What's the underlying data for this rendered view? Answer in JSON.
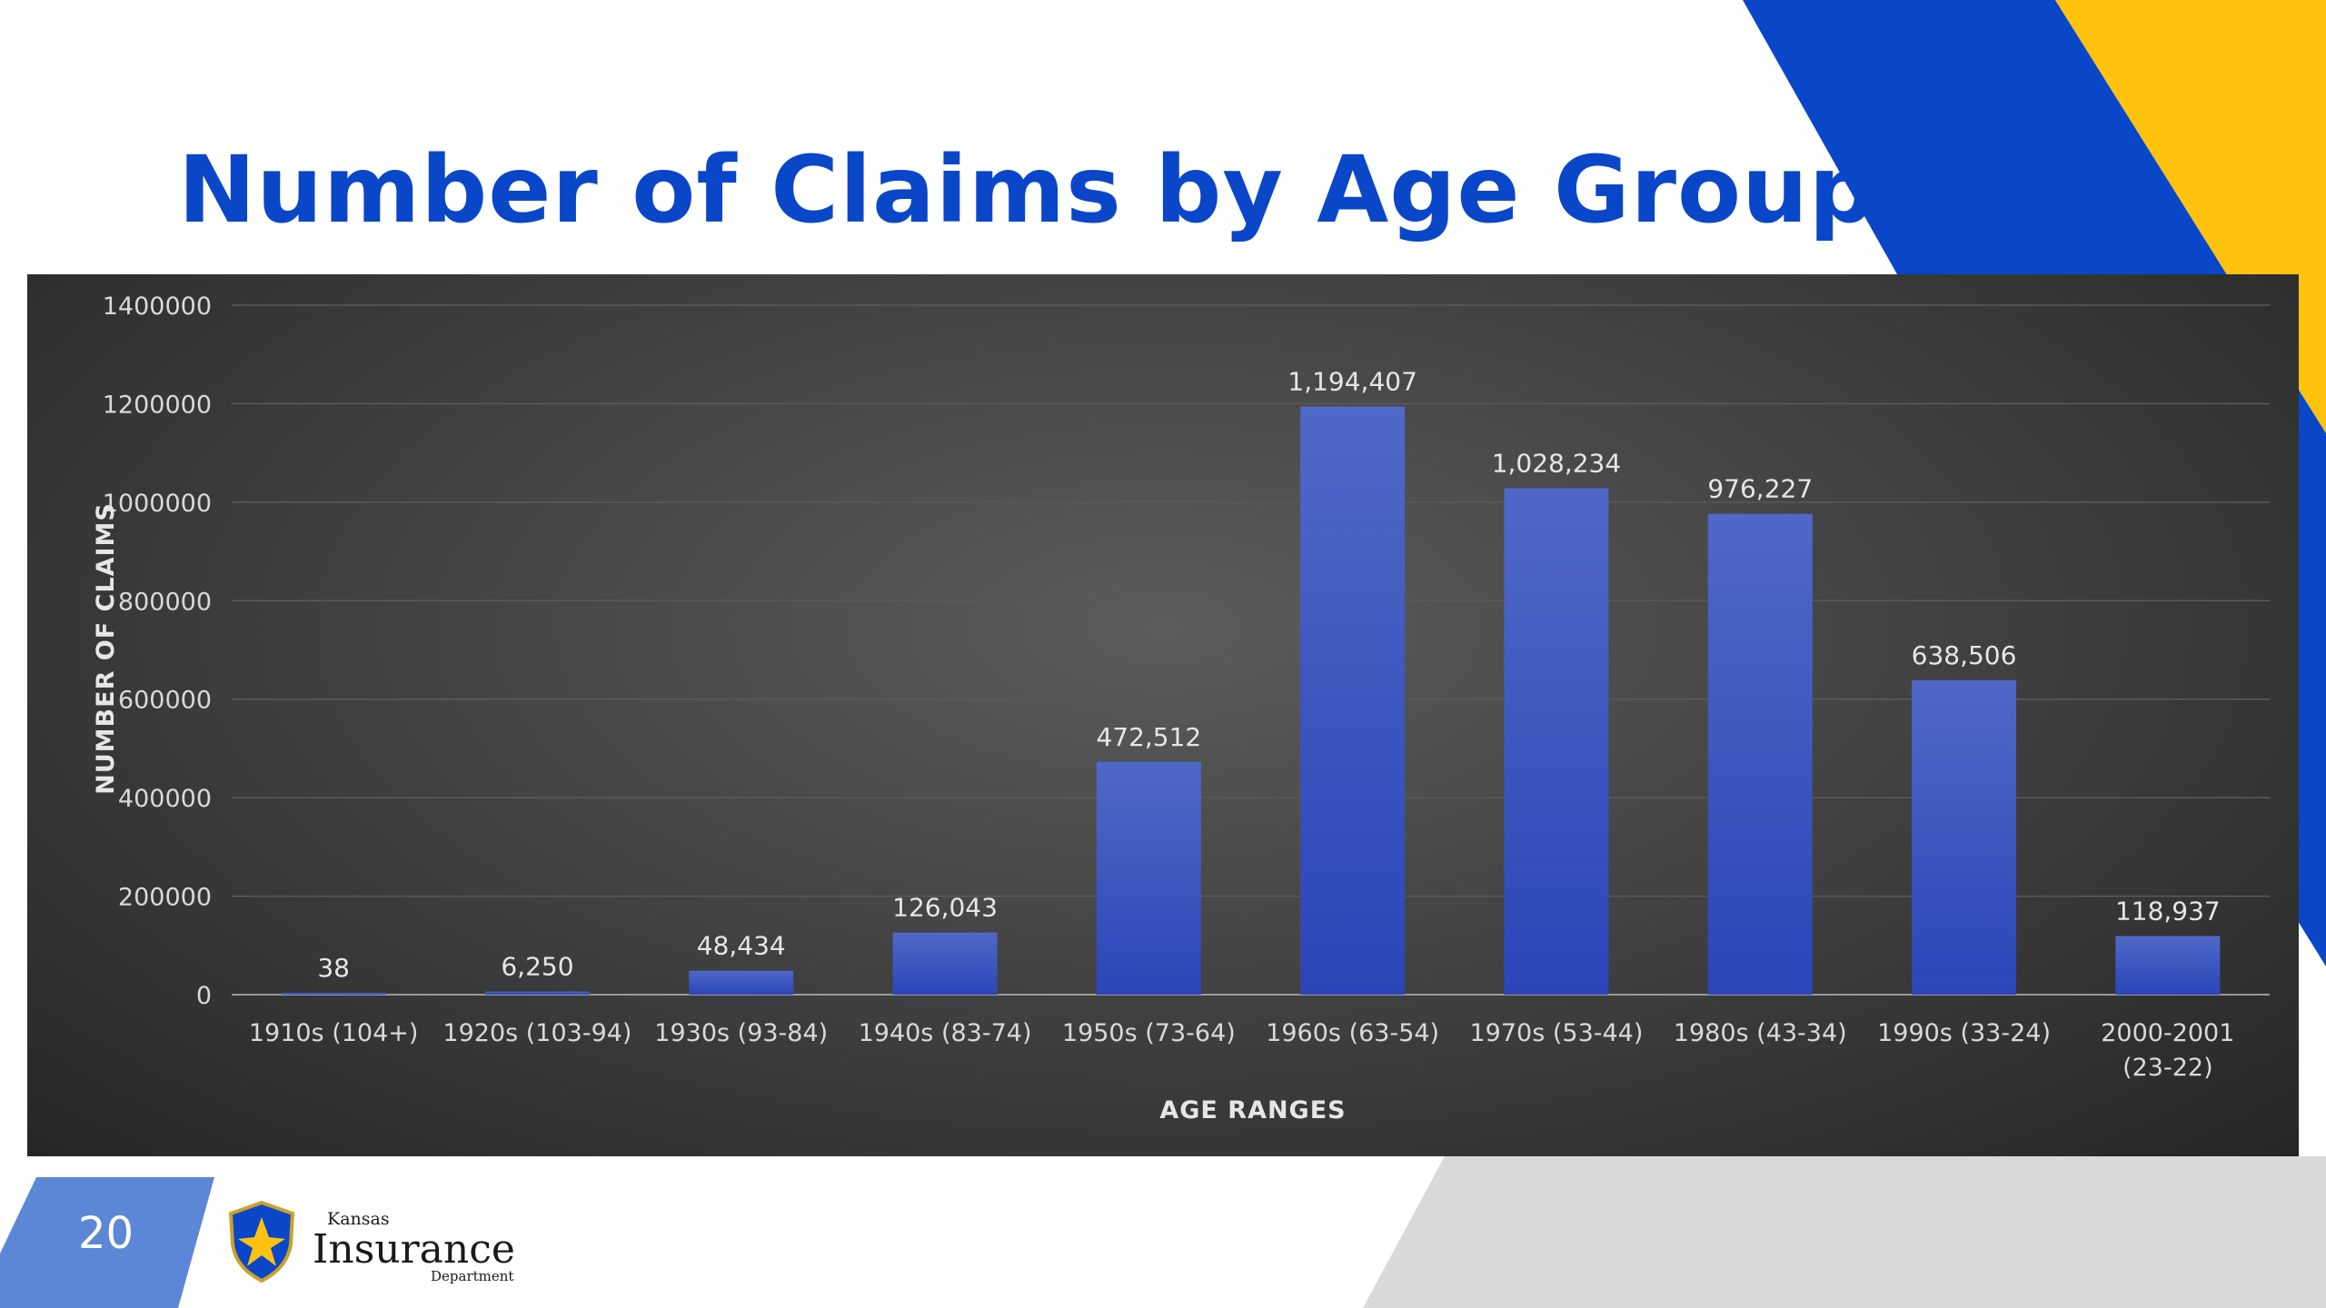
{
  "slide": {
    "title": "Number of Claims by Age Group",
    "page_number": "20"
  },
  "logo": {
    "line1": "Kansas",
    "line2": "Insurance",
    "line3": "Department"
  },
  "colors": {
    "title": "#0a46c8",
    "bar": "#3a56c8",
    "deco_blue": "#0a46c8",
    "deco_yellow": "#ffc20e",
    "deco_lightblue": "#5b87d6",
    "deco_gray": "#d9d9d9"
  },
  "chart_data": {
    "type": "bar",
    "categories": [
      [
        "1910s (104+)"
      ],
      [
        "1920s (103-94)"
      ],
      [
        "1930s (93-84)"
      ],
      [
        "1940s (83-74)"
      ],
      [
        "1950s (73-64)"
      ],
      [
        "1960s (63-54)"
      ],
      [
        "1970s (53-44)"
      ],
      [
        "1980s (43-34)"
      ],
      [
        "1990s (33-24)"
      ],
      [
        "2000-2001",
        "(23-22)"
      ]
    ],
    "values": [
      38,
      6250,
      48434,
      126043,
      472512,
      1194407,
      1028234,
      976227,
      638506,
      118937
    ],
    "data_labels": [
      "38",
      "6,250",
      "48,434",
      "126,043",
      "472,512",
      "1,194,407",
      "1,028,234",
      "976,227",
      "638,506",
      "118,937"
    ],
    "ylim": [
      0,
      1400000
    ],
    "yticks": [
      0,
      200000,
      400000,
      600000,
      800000,
      1000000,
      1200000,
      1400000
    ],
    "ytick_labels": [
      "0",
      "200000",
      "400000",
      "600000",
      "800000",
      "1000000",
      "1200000",
      "1400000"
    ],
    "xlabel": "AGE RANGES",
    "ylabel": "NUMBER OF CLAIMS",
    "grid": true,
    "legend": "none"
  }
}
